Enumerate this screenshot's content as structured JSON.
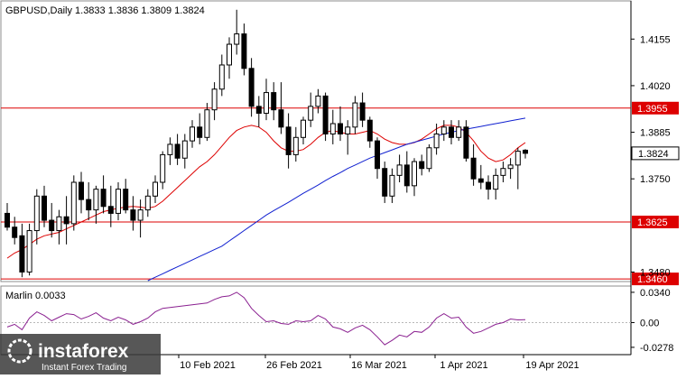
{
  "header": {
    "symbol_line": "GBPUSD,Daily  1.3833 1.3836 1.3809 1.3824"
  },
  "chart_data": {
    "type": "candlestick",
    "symbol": "GBPUSD",
    "timeframe": "Daily",
    "ohlc_header": {
      "open": 1.3833,
      "high": 1.3836,
      "low": 1.3809,
      "close": 1.3824
    },
    "price_axis": {
      "ticks": [
        "1.4155",
        "1.4020",
        "1.3885",
        "1.3750",
        "1.3480"
      ],
      "range": [
        1.3455,
        1.4263
      ]
    },
    "time_axis": {
      "labels": [
        "10 Feb 2021",
        "26 Feb 2021",
        "16 Mar 2021",
        "1 Apr 2021",
        "19 Apr 2021"
      ]
    },
    "levels": [
      {
        "price": 1.3955,
        "label": "1.3955",
        "color": "#dd0000"
      },
      {
        "price": 1.3625,
        "label": "1.3625",
        "color": "#dd0000"
      },
      {
        "price": 1.346,
        "label": "1.3460",
        "color": "#dd0000"
      }
    ],
    "current_price": {
      "price": 1.3824,
      "label": "1.3824"
    },
    "candles": [
      [
        1.365,
        1.368,
        1.36,
        1.361
      ],
      [
        1.361,
        1.364,
        1.356,
        1.358
      ],
      [
        1.3585,
        1.362,
        1.3465,
        1.348
      ],
      [
        1.348,
        1.362,
        1.347,
        1.36
      ],
      [
        1.36,
        1.372,
        1.356,
        1.37
      ],
      [
        1.37,
        1.373,
        1.361,
        1.363
      ],
      [
        1.363,
        1.368,
        1.358,
        1.36
      ],
      [
        1.36,
        1.366,
        1.356,
        1.364
      ],
      [
        1.364,
        1.37,
        1.356,
        1.362
      ],
      [
        1.362,
        1.376,
        1.36,
        1.374
      ],
      [
        1.374,
        1.377,
        1.365,
        1.369
      ],
      [
        1.369,
        1.374,
        1.363,
        1.366
      ],
      [
        1.366,
        1.373,
        1.362,
        1.372
      ],
      [
        1.372,
        1.376,
        1.365,
        1.367
      ],
      [
        1.367,
        1.373,
        1.361,
        1.365
      ],
      [
        1.365,
        1.374,
        1.363,
        1.372
      ],
      [
        1.372,
        1.375,
        1.365,
        1.366
      ],
      [
        1.366,
        1.37,
        1.36,
        1.363
      ],
      [
        1.363,
        1.369,
        1.358,
        1.366
      ],
      [
        1.366,
        1.372,
        1.364,
        1.37
      ],
      [
        1.37,
        1.376,
        1.368,
        1.374
      ],
      [
        1.374,
        1.383,
        1.372,
        1.382
      ],
      [
        1.382,
        1.387,
        1.379,
        1.385
      ],
      [
        1.385,
        1.388,
        1.379,
        1.381
      ],
      [
        1.381,
        1.388,
        1.378,
        1.386
      ],
      [
        1.386,
        1.392,
        1.384,
        1.39
      ],
      [
        1.39,
        1.394,
        1.385,
        1.387
      ],
      [
        1.387,
        1.397,
        1.386,
        1.395
      ],
      [
        1.395,
        1.403,
        1.392,
        1.401
      ],
      [
        1.401,
        1.411,
        1.399,
        1.408
      ],
      [
        1.408,
        1.416,
        1.404,
        1.414
      ],
      [
        1.414,
        1.424,
        1.411,
        1.417
      ],
      [
        1.417,
        1.42,
        1.405,
        1.407
      ],
      [
        1.407,
        1.41,
        1.393,
        1.396
      ],
      [
        1.396,
        1.399,
        1.39,
        1.394
      ],
      [
        1.394,
        1.404,
        1.392,
        1.4
      ],
      [
        1.4,
        1.403,
        1.392,
        1.395
      ],
      [
        1.395,
        1.403,
        1.388,
        1.39
      ],
      [
        1.39,
        1.394,
        1.378,
        1.382
      ],
      [
        1.382,
        1.39,
        1.38,
        1.387
      ],
      [
        1.387,
        1.393,
        1.385,
        1.392
      ],
      [
        1.392,
        1.4,
        1.39,
        1.396
      ],
      [
        1.396,
        1.401,
        1.394,
        1.399
      ],
      [
        1.399,
        1.4,
        1.386,
        1.388
      ],
      [
        1.388,
        1.395,
        1.385,
        1.391
      ],
      [
        1.391,
        1.396,
        1.386,
        1.388
      ],
      [
        1.388,
        1.392,
        1.382,
        1.39
      ],
      [
        1.39,
        1.399,
        1.388,
        1.397
      ],
      [
        1.397,
        1.4,
        1.39,
        1.392
      ],
      [
        1.392,
        1.393,
        1.384,
        1.386
      ],
      [
        1.386,
        1.387,
        1.375,
        1.378
      ],
      [
        1.378,
        1.38,
        1.368,
        1.37
      ],
      [
        1.37,
        1.378,
        1.368,
        1.376
      ],
      [
        1.376,
        1.382,
        1.374,
        1.379
      ],
      [
        1.379,
        1.383,
        1.371,
        1.373
      ],
      [
        1.373,
        1.381,
        1.37,
        1.38
      ],
      [
        1.38,
        1.382,
        1.376,
        1.378
      ],
      [
        1.378,
        1.385,
        1.377,
        1.384
      ],
      [
        1.384,
        1.391,
        1.382,
        1.388
      ],
      [
        1.388,
        1.392,
        1.386,
        1.39
      ],
      [
        1.39,
        1.392,
        1.385,
        1.387
      ],
      [
        1.387,
        1.392,
        1.386,
        1.39
      ],
      [
        1.39,
        1.392,
        1.38,
        1.381
      ],
      [
        1.381,
        1.385,
        1.373,
        1.375
      ],
      [
        1.375,
        1.379,
        1.372,
        1.374
      ],
      [
        1.374,
        1.376,
        1.369,
        1.372
      ],
      [
        1.372,
        1.378,
        1.369,
        1.376
      ],
      [
        1.376,
        1.38,
        1.374,
        1.378
      ],
      [
        1.378,
        1.381,
        1.375,
        1.379
      ],
      [
        1.379,
        1.384,
        1.372,
        1.383
      ],
      [
        1.3833,
        1.3836,
        1.3809,
        1.3824
      ]
    ],
    "moving_averages": [
      {
        "color": "#dd0000",
        "values": [
          1.352,
          1.3535,
          1.3545,
          1.356,
          1.3575,
          1.3585,
          1.359,
          1.3595,
          1.3605,
          1.3615,
          1.3625,
          1.3635,
          1.3645,
          1.3655,
          1.366,
          1.3665,
          1.3668,
          1.367,
          1.3668,
          1.3665,
          1.367,
          1.3685,
          1.3705,
          1.3725,
          1.3745,
          1.3765,
          1.3785,
          1.38,
          1.382,
          1.3845,
          1.387,
          1.389,
          1.39,
          1.3905,
          1.39,
          1.3885,
          1.386,
          1.384,
          1.383,
          1.383,
          1.3835,
          1.385,
          1.387,
          1.3885,
          1.389,
          1.3885,
          1.388,
          1.388,
          1.3885,
          1.389,
          1.388,
          1.3865,
          1.3855,
          1.385,
          1.385,
          1.3855,
          1.3865,
          1.388,
          1.3895,
          1.3905,
          1.3905,
          1.39,
          1.3885,
          1.386,
          1.383,
          1.381,
          1.38,
          1.3805,
          1.382,
          1.384,
          1.3855
        ]
      },
      {
        "color": "#1020d0",
        "values": [
          null,
          null,
          null,
          null,
          null,
          null,
          null,
          null,
          null,
          null,
          null,
          null,
          null,
          null,
          null,
          null,
          null,
          null,
          null,
          1.3455,
          1.3465,
          1.3475,
          1.3485,
          1.3495,
          1.3505,
          1.3515,
          1.3525,
          1.3535,
          1.3545,
          1.3555,
          1.357,
          1.3585,
          1.36,
          1.3615,
          1.363,
          1.3645,
          1.3658,
          1.367,
          1.3682,
          1.3695,
          1.3708,
          1.372,
          1.3732,
          1.3745,
          1.3757,
          1.3768,
          1.378,
          1.379,
          1.38,
          1.381,
          1.3818,
          1.3826,
          1.3834,
          1.3842,
          1.385,
          1.3856,
          1.3862,
          1.3868,
          1.3874,
          1.388,
          1.3885,
          1.389,
          1.3894,
          1.3898,
          1.3902,
          1.3906,
          1.391,
          1.3914,
          1.3918,
          1.3922,
          1.3926
        ]
      }
    ],
    "oscillator": {
      "name": "Marlin",
      "label": "Marlin 0.0033",
      "value": 0.0033,
      "ticks": [
        "0.0340",
        "0.00",
        "-0.0278"
      ],
      "range": [
        -0.035,
        0.04
      ],
      "color": "#8a2090",
      "values": [
        -0.005,
        -0.002,
        -0.008,
        0.005,
        0.012,
        0.008,
        0.002,
        0.006,
        0.01,
        0.009,
        0.004,
        0.007,
        0.011,
        0.005,
        0.002,
        0.006,
        0.003,
        -0.002,
        0.001,
        0.005,
        0.012,
        0.016,
        0.017,
        0.018,
        0.019,
        0.02,
        0.021,
        0.022,
        0.026,
        0.029,
        0.03,
        0.034,
        0.028,
        0.016,
        0.008,
        0.001,
        0.002,
        -0.001,
        -0.002,
        0.002,
        0.001,
        0.002,
        0.008,
        0.004,
        -0.005,
        -0.007,
        -0.011,
        -0.006,
        -0.003,
        -0.008,
        -0.016,
        -0.025,
        -0.02,
        -0.014,
        -0.016,
        -0.01,
        -0.011,
        -0.005,
        0.005,
        0.01,
        0.005,
        0.006,
        -0.005,
        -0.012,
        -0.01,
        -0.006,
        -0.002,
        0.0,
        0.004,
        0.003,
        0.0033
      ]
    }
  },
  "watermark": {
    "brand": "instaforex",
    "tagline": "Instant Forex Trading"
  }
}
